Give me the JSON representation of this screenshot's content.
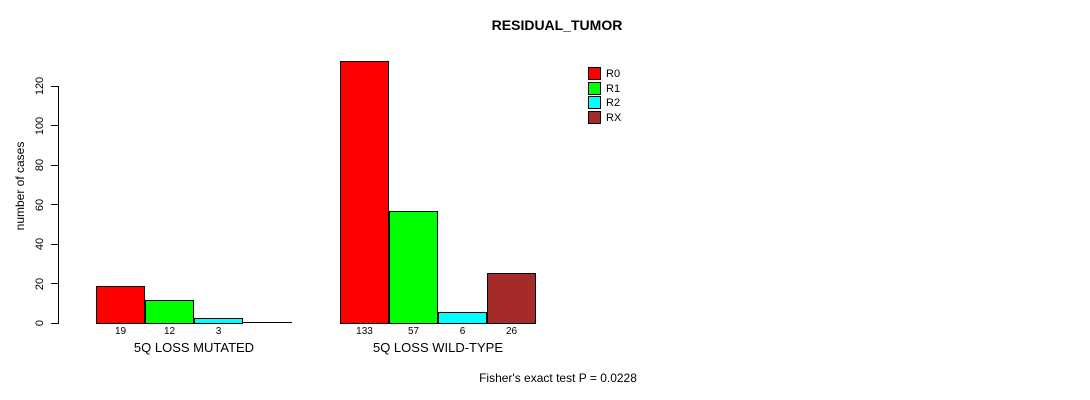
{
  "chart_data": {
    "type": "bar",
    "title": "RESIDUAL_TUMOR",
    "xlabel": "",
    "ylabel": "number of cases",
    "ylim": [
      0,
      120
    ],
    "yticks": [
      0,
      20,
      40,
      60,
      80,
      100,
      120
    ],
    "grid": false,
    "legend_position": "top-right",
    "categories": [
      "5Q LOSS MUTATED",
      "5Q LOSS WILD-TYPE"
    ],
    "series": [
      {
        "name": "R0",
        "color": "#ff0000",
        "values": [
          19,
          133
        ]
      },
      {
        "name": "R1",
        "color": "#00ff00",
        "values": [
          12,
          57
        ]
      },
      {
        "name": "R2",
        "color": "#00ffff",
        "values": [
          3,
          6
        ]
      },
      {
        "name": "RX",
        "color": "#a52a2a",
        "values": [
          0,
          26
        ]
      }
    ],
    "bar_value_labels": {
      "5Q LOSS MUTATED": [
        "19",
        "12",
        "3"
      ],
      "5Q LOSS WILD-TYPE": [
        "133",
        "57",
        "6",
        "26"
      ]
    },
    "annotation": "Fisher's exact test P = 0.0228"
  }
}
